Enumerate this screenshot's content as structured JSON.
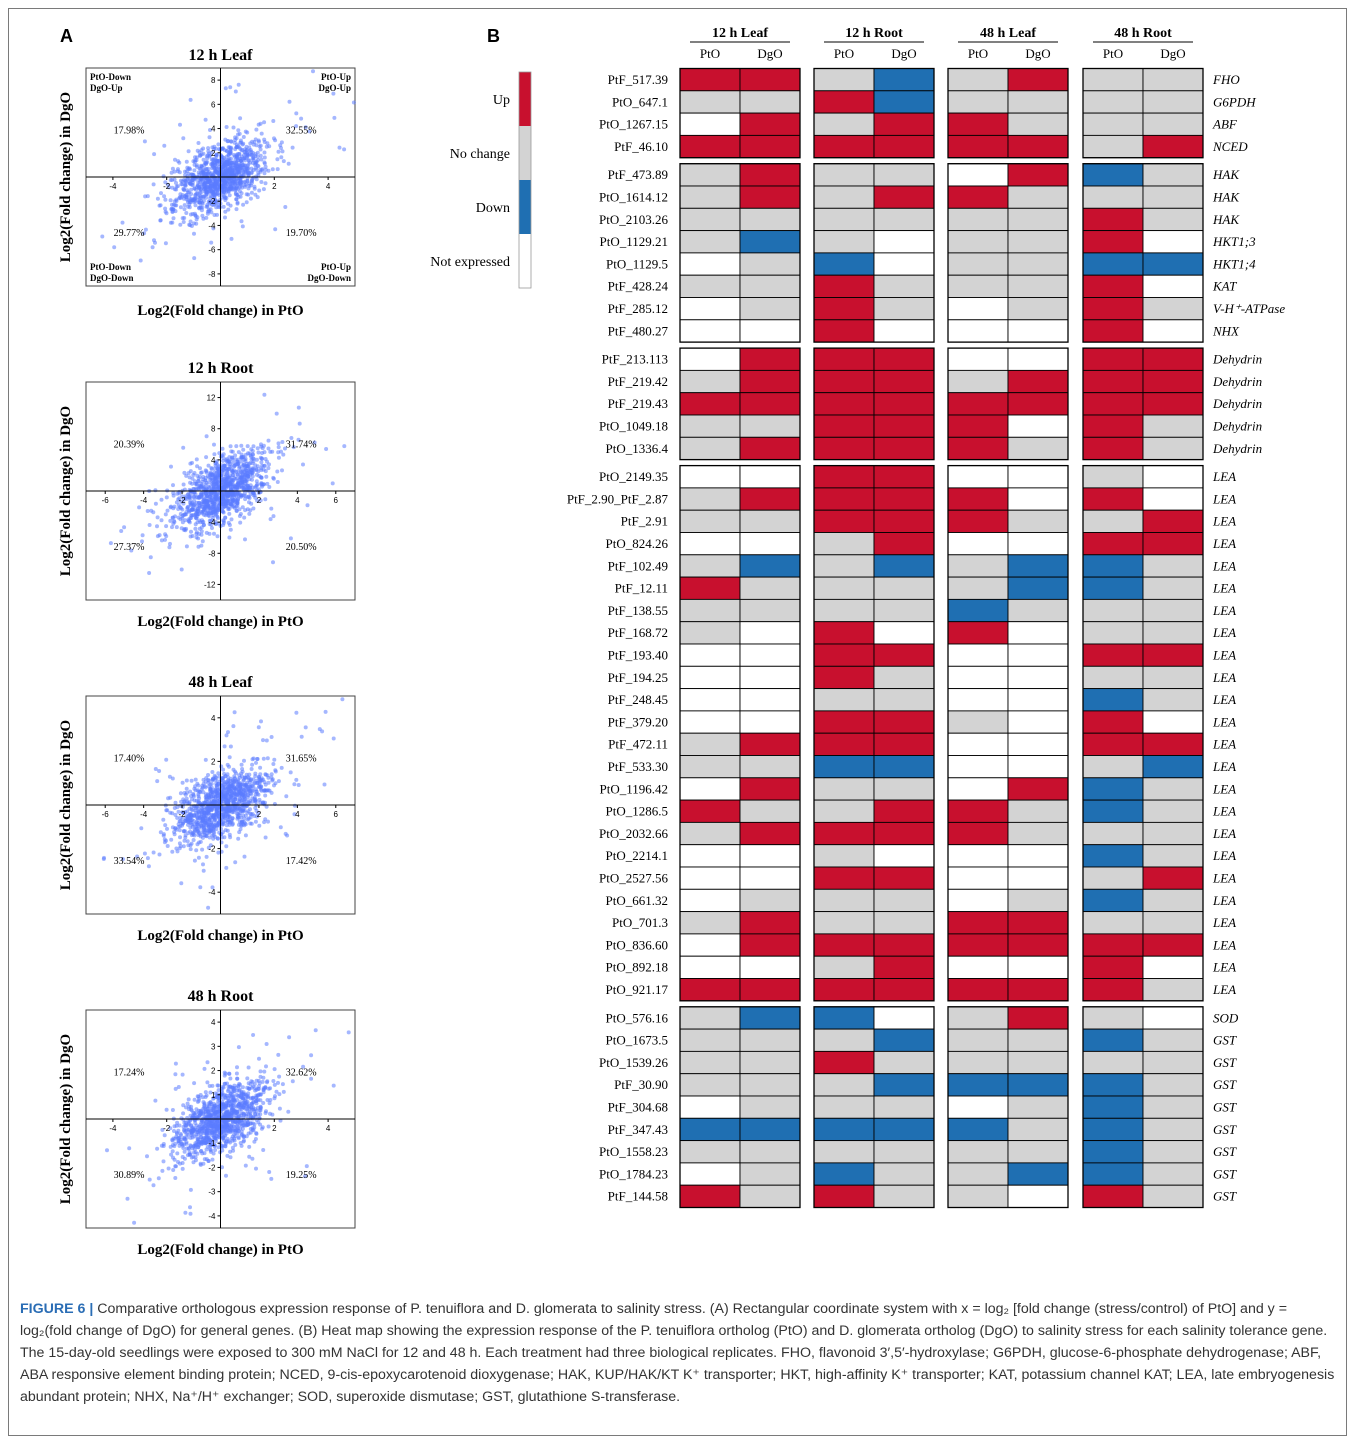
{
  "panel_a_letter": "A",
  "panel_b_letter": "B",
  "chart_data": [
    {
      "type": "scatter",
      "title": "12 h Leaf",
      "xlabel": "Log2(Fold change) in PtO",
      "ylabel": "Log2(Fold change) in DgO",
      "xlim": [
        -5,
        5
      ],
      "ylim": [
        -9,
        9
      ],
      "xticks": [
        -4,
        -2,
        2,
        4
      ],
      "yticks": [
        -8,
        -6,
        -4,
        -2,
        2,
        4,
        6,
        8
      ],
      "quadrant_percent": {
        "up_left": "17.98%",
        "up_right": "32.55%",
        "low_left": "29.77%",
        "low_right": "19.70%"
      },
      "quadrant_labels": {
        "up_left": [
          "PtO-Down",
          "DgO-Up"
        ],
        "up_right": [
          "PtO-Up",
          "DgO-Up"
        ],
        "low_left": [
          "PtO-Down",
          "DgO-Down"
        ],
        "low_right": [
          "PtO-Up",
          "DgO-Down"
        ]
      },
      "point_color": "#5b7bff"
    },
    {
      "type": "scatter",
      "title": "12 h Root",
      "xlabel": "Log2(Fold change) in PtO",
      "ylabel": "Log2(Fold change) in DgO",
      "xlim": [
        -7,
        7
      ],
      "ylim": [
        -14,
        14
      ],
      "xticks": [
        -6,
        -4,
        -2,
        2,
        4,
        6
      ],
      "yticks": [
        -12,
        -8,
        -4,
        4,
        8,
        12
      ],
      "quadrant_percent": {
        "up_left": "20.39%",
        "up_right": "31.74%",
        "low_left": "27.37%",
        "low_right": "20.50%"
      },
      "quadrant_labels": null,
      "point_color": "#5b7bff"
    },
    {
      "type": "scatter",
      "title": "48 h Leaf",
      "xlabel": "Log2(Fold change) in PtO",
      "ylabel": "Log2(Fold change) in DgO",
      "xlim": [
        -7,
        7
      ],
      "ylim": [
        -5,
        5
      ],
      "xticks": [
        -6,
        -4,
        -2,
        2,
        4,
        6
      ],
      "yticks": [
        -4,
        -2,
        2,
        4
      ],
      "quadrant_percent": {
        "up_left": "17.40%",
        "up_right": "31.65%",
        "low_left": "33.54%",
        "low_right": "17.42%"
      },
      "quadrant_labels": null,
      "point_color": "#5b7bff"
    },
    {
      "type": "scatter",
      "title": "48 h Root",
      "xlabel": "Log2(Fold change) in PtO",
      "ylabel": "Log2(Fold change) in DgO",
      "xlim": [
        -5,
        5
      ],
      "ylim": [
        -4.5,
        4.5
      ],
      "xticks": [
        -4,
        -2,
        2,
        4
      ],
      "yticks": [
        -4,
        -3,
        -2,
        -1,
        1,
        2,
        3,
        4
      ],
      "quadrant_percent": {
        "up_left": "17.24%",
        "up_right": "32.62%",
        "low_left": "30.89%",
        "low_right": "19.25%"
      },
      "quadrant_labels": null,
      "point_color": "#5b7bff"
    },
    {
      "type": "heatmap",
      "groups": [
        "12 h Leaf",
        "12 h Root",
        "48 h Leaf",
        "48 h Root"
      ],
      "subcolumns": [
        "PtO",
        "DgO"
      ],
      "legend": [
        {
          "code": "U",
          "label": "Up",
          "color": "#c8102e"
        },
        {
          "code": "N",
          "label": "No change",
          "color": "#d3d3d3"
        },
        {
          "code": "D",
          "label": "Down",
          "color": "#1f6fb2"
        },
        {
          "code": "X",
          "label": "Not expressed",
          "color": "#ffffff"
        }
      ],
      "blocks": [
        [
          {
            "gene": "PtF_517.39",
            "ann": "FHO",
            "v": "UUNDNUNN"
          },
          {
            "gene": "PtO_647.1",
            "ann": "G6PDH",
            "v": "NNUDNNNN"
          },
          {
            "gene": "PtO_1267.15",
            "ann": "ABF",
            "v": "XUNUUNNN"
          },
          {
            "gene": "PtF_46.10",
            "ann": "NCED",
            "v": "UUUUUUNU"
          }
        ],
        [
          {
            "gene": "PtF_473.89",
            "ann": "HAK",
            "v": "NUNNXUDN"
          },
          {
            "gene": "PtO_1614.12",
            "ann": "HAK",
            "v": "NUNUUNNN"
          },
          {
            "gene": "PtO_2103.26",
            "ann": "HAK",
            "v": "NNNNNNUN"
          },
          {
            "gene": "PtO_1129.21",
            "ann": "HKT1;3",
            "v": "NDNXNNUX"
          },
          {
            "gene": "PtO_1129.5",
            "ann": "HKT1;4",
            "v": "XNDXNNDD"
          },
          {
            "gene": "PtF_428.24",
            "ann": "KAT",
            "v": "NNUNNNUX"
          },
          {
            "gene": "PtF_285.12",
            "ann": "V-H⁺-ATPase",
            "v": "XNUNXNUN"
          },
          {
            "gene": "PtF_480.27",
            "ann": "NHX",
            "v": "XXUXXXUX"
          }
        ],
        [
          {
            "gene": "PtF_213.113",
            "ann": "Dehydrin",
            "v": "XUUUXXUU"
          },
          {
            "gene": "PtF_219.42",
            "ann": "Dehydrin",
            "v": "NUUUNUUU"
          },
          {
            "gene": "PtF_219.43",
            "ann": "Dehydrin",
            "v": "UUUUUUUU"
          },
          {
            "gene": "PtO_1049.18",
            "ann": "Dehydrin",
            "v": "NNUUUXUN"
          },
          {
            "gene": "PtO_1336.4",
            "ann": "Dehydrin",
            "v": "NUUUUNUN"
          }
        ],
        [
          {
            "gene": "PtO_2149.35",
            "ann": "LEA",
            "v": "XXUUXXNX"
          },
          {
            "gene": "PtF_2.90_PtF_2.87",
            "ann": "LEA",
            "v": "NUUUUXUX"
          },
          {
            "gene": "PtF_2.91",
            "ann": "LEA",
            "v": "NNUUUNNU"
          },
          {
            "gene": "PtO_824.26",
            "ann": "LEA",
            "v": "XXNUXXUU"
          },
          {
            "gene": "PtF_102.49",
            "ann": "LEA",
            "v": "NDNDNDDN"
          },
          {
            "gene": "PtF_12.11",
            "ann": "LEA",
            "v": "UNNNNDDN"
          },
          {
            "gene": "PtF_138.55",
            "ann": "LEA",
            "v": "NNNNDNNN"
          },
          {
            "gene": "PtF_168.72",
            "ann": "LEA",
            "v": "NXUXUXNN"
          },
          {
            "gene": "PtF_193.40",
            "ann": "LEA",
            "v": "XXUUXXUU"
          },
          {
            "gene": "PtF_194.25",
            "ann": "LEA",
            "v": "XXUNXXNN"
          },
          {
            "gene": "PtF_248.45",
            "ann": "LEA",
            "v": "XXNNXXDN"
          },
          {
            "gene": "PtF_379.20",
            "ann": "LEA",
            "v": "XXUUNXUX"
          },
          {
            "gene": "PtF_472.11",
            "ann": "LEA",
            "v": "NUUUXXUU"
          },
          {
            "gene": "PtF_533.30",
            "ann": "LEA",
            "v": "NNDDXXND"
          },
          {
            "gene": "PtO_1196.42",
            "ann": "LEA",
            "v": "XUNNXUDN"
          },
          {
            "gene": "PtO_1286.5",
            "ann": "LEA",
            "v": "UNNUUNDN"
          },
          {
            "gene": "PtO_2032.66",
            "ann": "LEA",
            "v": "NUUUUNNN"
          },
          {
            "gene": "PtO_2214.1",
            "ann": "LEA",
            "v": "XXNXXXDN"
          },
          {
            "gene": "PtO_2527.56",
            "ann": "LEA",
            "v": "XXUUXXNU"
          },
          {
            "gene": "PtO_661.32",
            "ann": "LEA",
            "v": "XNNNXNDN"
          },
          {
            "gene": "PtO_701.3",
            "ann": "LEA",
            "v": "NUNNUUNN"
          },
          {
            "gene": "PtO_836.60",
            "ann": "LEA",
            "v": "XUUUUUUU"
          },
          {
            "gene": "PtO_892.18",
            "ann": "LEA",
            "v": "XXNUXXUX"
          },
          {
            "gene": "PtO_921.17",
            "ann": "LEA",
            "v": "UUUUUUUN"
          }
        ],
        [
          {
            "gene": "PtO_576.16",
            "ann": "SOD",
            "v": "NDDXNUNX"
          },
          {
            "gene": "PtO_1673.5",
            "ann": "GST",
            "v": "NNNDNNDN"
          },
          {
            "gene": "PtO_1539.26",
            "ann": "GST",
            "v": "NNUNNNNN"
          },
          {
            "gene": "PtF_30.90",
            "ann": "GST",
            "v": "NNNDDDDN"
          },
          {
            "gene": "PtF_304.68",
            "ann": "GST",
            "v": "XNNNXNDN"
          },
          {
            "gene": "PtF_347.43",
            "ann": "GST",
            "v": "DDDDDNDN"
          },
          {
            "gene": "PtO_1558.23",
            "ann": "GST",
            "v": "NNNNNNDN"
          },
          {
            "gene": "PtO_1784.23",
            "ann": "GST",
            "v": "XNDNNDDN"
          },
          {
            "gene": "PtF_144.58",
            "ann": "GST",
            "v": "UNUNNXUN"
          }
        ]
      ]
    }
  ],
  "caption": {
    "lead": "FIGURE 6 |",
    "text": " Comparative orthologous expression response of P. tenuiflora and D. glomerata to salinity stress. (A) Rectangular coordinate system with x = log₂ [fold change (stress/control) of PtO] and y = log₂(fold change of DgO) for general genes. (B) Heat map showing the expression response of the P. tenuiflora ortholog (PtO) and D. glomerata ortholog (DgO) to salinity stress for each salinity tolerance gene. The 15-day-old seedlings were exposed to 300 mM NaCl for 12 and 48 h. Each treatment had three biological replicates. FHO, flavonoid 3′,5′-hydroxylase; G6PDH, glucose-6-phosphate dehydrogenase; ABF, ABA responsive element binding protein; NCED, 9-cis-epoxycarotenoid dioxygenase; HAK, KUP/HAK/KT K⁺ transporter; HKT, high-affinity K⁺ transporter; KAT, potassium channel KAT; LEA, late embryogenesis abundant protein; NHX, Na⁺/H⁺ exchanger; SOD, superoxide dismutase; GST, glutathione S-transferase."
  }
}
